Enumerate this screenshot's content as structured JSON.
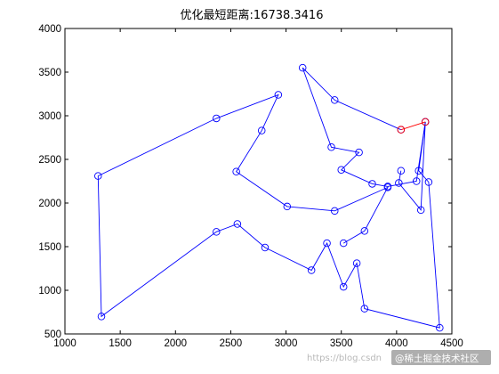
{
  "chart_data": {
    "type": "line",
    "title": "优化最短距离:16738.3416",
    "xlabel": "",
    "ylabel": "",
    "xlim": [
      1000,
      4500
    ],
    "ylim": [
      500,
      4000
    ],
    "xticks": [
      1000,
      1500,
      2000,
      2500,
      3000,
      3500,
      4000,
      4500
    ],
    "yticks": [
      500,
      1000,
      1500,
      2000,
      2500,
      3000,
      3500,
      4000
    ],
    "grid": false,
    "series": [
      {
        "color": "#0000ff",
        "marker": "circle",
        "x": [
          4040,
          4020,
          4220,
          4260,
          4180,
          3920,
          3780,
          3500,
          3660,
          3410,
          3150,
          3440,
          4040
        ],
        "y": [
          2370,
          2230,
          1920,
          2930,
          2250,
          2190,
          2220,
          2380,
          2580,
          2640,
          3550,
          3180,
          2840
        ]
      },
      {
        "color": "#0000ff",
        "marker": "circle",
        "x": [
          4260,
          4200,
          4290,
          4390,
          3710,
          3640,
          3520,
          3370,
          3230,
          2810,
          2560,
          2370,
          1330,
          1300,
          2370,
          2930,
          2780,
          2550,
          3010,
          3440,
          3920,
          3710,
          3520
        ],
        "y": [
          2930,
          2370,
          2240,
          570,
          790,
          1310,
          1040,
          1540,
          1230,
          1490,
          1760,
          1670,
          700,
          2310,
          2970,
          3240,
          2830,
          2360,
          1960,
          1910,
          2180,
          1680,
          1540
        ]
      },
      {
        "color": "#ff0000",
        "marker": "circle",
        "x": [
          4040,
          4260
        ],
        "y": [
          2840,
          2930
        ]
      }
    ]
  },
  "watermark": {
    "url": "https://blog.csdn",
    "source": "@稀土掘金技术社区"
  }
}
